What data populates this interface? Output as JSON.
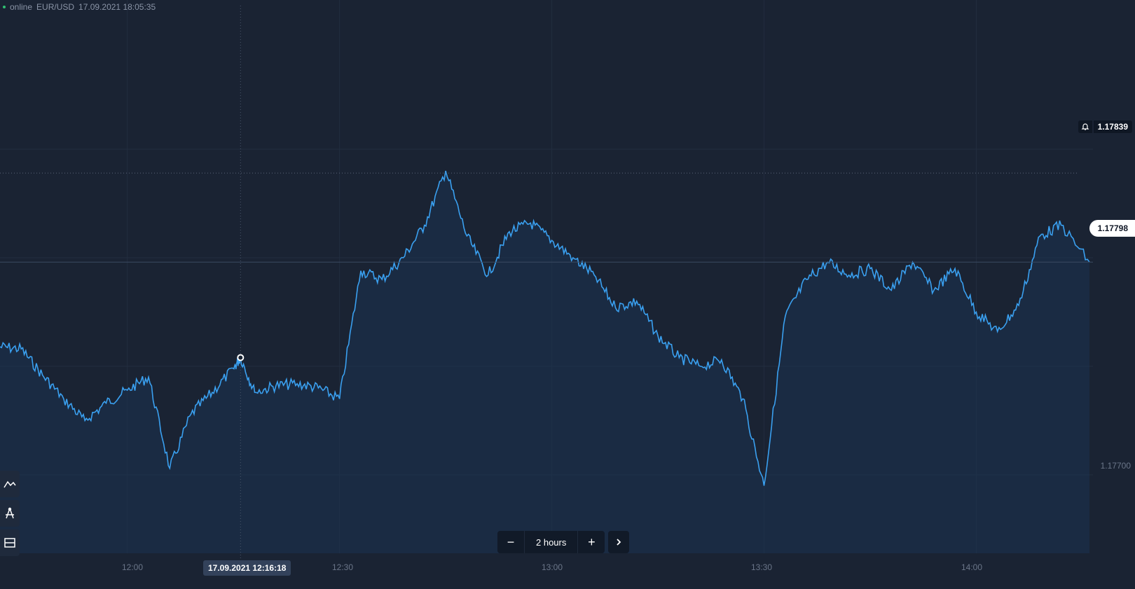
{
  "header": {
    "status": "online",
    "symbol": "EUR/USD",
    "datetime": "17.09.2021 18:05:35"
  },
  "price_labels": {
    "alert_price": "1.17839",
    "current_price": "1.17798",
    "axis_tick": "1.17700"
  },
  "time_axis": {
    "ticks": [
      "12:00",
      "12:30",
      "13:00",
      "13:30",
      "14:00"
    ],
    "cursor_time": "17.09.2021 12:16:18"
  },
  "zoom": {
    "minus_label": "−",
    "period_label": "2 hours",
    "plus_label": "+"
  },
  "toolbar": {
    "items": [
      {
        "icon": "chart-type-icon"
      },
      {
        "icon": "drawing-tools-icon"
      },
      {
        "icon": "layout-icon"
      }
    ]
  },
  "colors": {
    "background": "#1a2333",
    "line": "#3aa0f0",
    "area": "#1c3350"
  },
  "chart_data": {
    "type": "area",
    "x_unit": "time",
    "x": [
      "11:42",
      "11:45",
      "11:48",
      "11:51",
      "11:54",
      "11:57",
      "12:00",
      "12:03",
      "12:06",
      "12:09",
      "12:12",
      "12:15",
      "12:16",
      "12:18",
      "12:21",
      "12:24",
      "12:27",
      "12:30",
      "12:33",
      "12:36",
      "12:39",
      "12:42",
      "12:45",
      "12:48",
      "12:51",
      "12:54",
      "12:57",
      "13:00",
      "13:03",
      "13:06",
      "13:09",
      "13:12",
      "13:15",
      "13:18",
      "13:21",
      "13:24",
      "13:27",
      "13:30",
      "13:33",
      "13:36",
      "13:39",
      "13:42",
      "13:45",
      "13:48",
      "13:51",
      "13:54",
      "13:57",
      "14:00",
      "14:03",
      "14:06",
      "14:09",
      "14:12",
      "14:16"
    ],
    "values": [
      1.17759,
      1.17758,
      1.17746,
      1.17735,
      1.17725,
      1.17733,
      1.17739,
      1.17745,
      1.17703,
      1.17728,
      1.17738,
      1.17749,
      1.17754,
      1.17738,
      1.17741,
      1.17742,
      1.1774,
      1.17735,
      1.17794,
      1.1779,
      1.178,
      1.17815,
      1.1784,
      1.1781,
      1.17792,
      1.17812,
      1.17816,
      1.17808,
      1.178,
      1.17792,
      1.17777,
      1.1778,
      1.17764,
      1.17754,
      1.1775,
      1.17753,
      1.17735,
      1.17695,
      1.17773,
      1.1779,
      1.17798,
      1.17792,
      1.17795,
      1.17785,
      1.17798,
      1.17785,
      1.17795,
      1.17775,
      1.17766,
      1.17778,
      1.1781,
      1.17815,
      1.17798
    ],
    "y_ticks": [
      "1.17700"
    ],
    "ylim": [
      1.1768,
      1.1788
    ],
    "grid": true
  }
}
